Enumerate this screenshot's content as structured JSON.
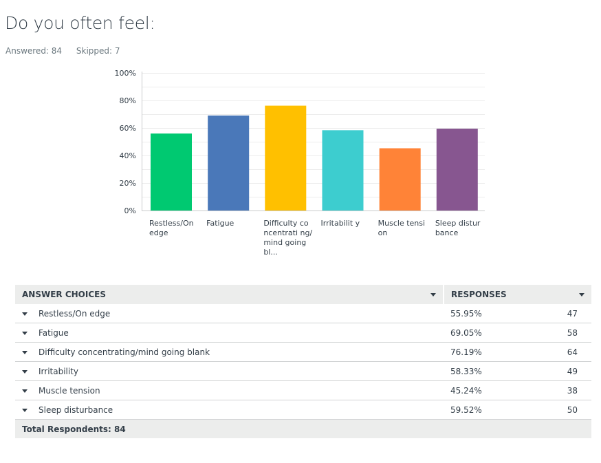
{
  "question": {
    "title": "Do you often feel:",
    "answered_label": "Answered: 84",
    "skipped_label": "Skipped: 7"
  },
  "chart_data": {
    "type": "bar",
    "title": "",
    "xlabel": "",
    "ylabel": "",
    "categories": [
      "Restless/On edge",
      "Fatigue",
      "Difficulty concentrating/mind going bl...",
      "Irritability",
      "Muscle tension",
      "Sleep disturbance"
    ],
    "category_labels_display": [
      "Restless/On edge",
      "Fatigue",
      "Difficulty concentrati ng/mind going bl...",
      "Irritabilit y",
      "Muscle tension",
      "Sleep disturbance"
    ],
    "values": [
      55.95,
      69.05,
      76.19,
      58.33,
      45.24,
      59.52
    ],
    "colors": [
      "#00c971",
      "#4a78b9",
      "#ffc000",
      "#3dcdcf",
      "#ff8337",
      "#875690"
    ],
    "ylim": [
      0,
      100
    ],
    "yticks": [
      "0%",
      "20%",
      "40%",
      "60%",
      "80%",
      "100%"
    ],
    "ytick_values": [
      0,
      20,
      40,
      60,
      80,
      100
    ],
    "minor_gridlines_every": 10,
    "grid": true,
    "legend": "none"
  },
  "table": {
    "header_choices": "ANSWER CHOICES",
    "header_responses": "RESPONSES",
    "rows": [
      {
        "label": "Restless/On edge",
        "percent": "55.95%",
        "count": "47"
      },
      {
        "label": "Fatigue",
        "percent": "69.05%",
        "count": "58"
      },
      {
        "label": "Difficulty concentrating/mind going blank",
        "percent": "76.19%",
        "count": "64"
      },
      {
        "label": "Irritability",
        "percent": "58.33%",
        "count": "49"
      },
      {
        "label": "Muscle tension",
        "percent": "45.24%",
        "count": "38"
      },
      {
        "label": "Sleep disturbance",
        "percent": "59.52%",
        "count": "50"
      }
    ],
    "total_label": "Total Respondents: 84"
  }
}
